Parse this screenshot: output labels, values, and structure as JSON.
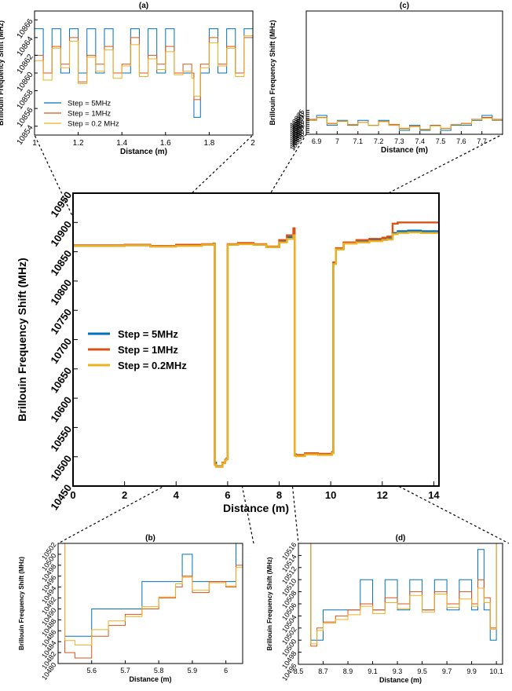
{
  "colors": {
    "s5": "#0072BD",
    "s1": "#D95319",
    "s02": "#EDB120"
  },
  "legend_main": [
    "Step = 5MHz",
    "Step = 1MHz",
    "Step = 0.2MHz"
  ],
  "legend_a": [
    "Step = 5MHz",
    "Step = 1MHz",
    "Step = 0.2 MHz"
  ],
  "chart_data": [
    {
      "id": "main",
      "type": "line",
      "title": "",
      "xlabel": "Distance (m)",
      "ylabel": "Brillouin Frequency Shift (MHz)",
      "xlim": [
        0,
        14.2
      ],
      "ylim": [
        10450,
        10950
      ],
      "xticks": [
        "0",
        "2",
        "4",
        "6",
        "8",
        "10",
        "12",
        "14"
      ],
      "yticks": [
        "10450",
        "10500",
        "10550",
        "10600",
        "10650",
        "10700",
        "10750",
        "10800",
        "10850",
        "10900",
        "10950"
      ],
      "legend_position": "left-middle",
      "series": [
        {
          "name": "Step = 5MHz",
          "x": [
            0,
            1,
            2,
            3,
            4,
            5,
            5.45,
            5.5,
            5.55,
            5.8,
            5.9,
            5.95,
            6.0,
            6.4,
            7.0,
            7.5,
            8.0,
            8.3,
            8.55,
            8.6,
            8.65,
            9.0,
            9.5,
            10.05,
            10.1,
            10.2,
            10.5,
            11.0,
            11.5,
            12.0,
            12.2,
            12.4,
            12.6,
            13.0,
            13.5,
            14.2
          ],
          "y": [
            10860,
            10860,
            10861,
            10859,
            10861,
            10862,
            10863,
            10490,
            10484,
            10490,
            10494,
            10497,
            10862,
            10864,
            10862,
            10858,
            10868,
            10875,
            10880,
            10504,
            10502,
            10505,
            10504,
            10507,
            10830,
            10855,
            10865,
            10868,
            10870,
            10872,
            10873,
            10882,
            10885,
            10886,
            10885,
            10886
          ]
        },
        {
          "name": "Step = 1MHz",
          "x": [
            0,
            1,
            2,
            3,
            4,
            5,
            5.45,
            5.5,
            5.55,
            5.8,
            5.9,
            5.95,
            6.0,
            6.4,
            7.0,
            7.5,
            8.0,
            8.3,
            8.55,
            8.6,
            8.65,
            9.0,
            9.5,
            10.05,
            10.1,
            10.2,
            10.5,
            11.0,
            11.5,
            12.0,
            12.2,
            12.4,
            12.6,
            13.0,
            13.5,
            14.2
          ],
          "y": [
            10861,
            10861,
            10862,
            10860,
            10862,
            10863,
            10864,
            10487,
            10483,
            10490,
            10495,
            10496,
            10863,
            10865,
            10863,
            10859,
            10870,
            10878,
            10890,
            10503,
            10503,
            10506,
            10505,
            10508,
            10832,
            10856,
            10866,
            10870,
            10872,
            10874,
            10876,
            10898,
            10900,
            10900,
            10900,
            10900
          ]
        },
        {
          "name": "Step = 0.2MHz",
          "x": [
            0,
            1,
            2,
            3,
            4,
            5,
            5.45,
            5.5,
            5.55,
            5.8,
            5.9,
            5.95,
            6.0,
            6.4,
            7.0,
            7.5,
            8.0,
            8.3,
            8.55,
            8.6,
            8.65,
            9.0,
            9.5,
            10.05,
            10.1,
            10.2,
            10.5,
            11.0,
            11.5,
            12.0,
            12.2,
            12.4,
            12.6,
            13.0,
            13.5,
            14.2
          ],
          "y": [
            10860,
            10860,
            10861,
            10859,
            10860,
            10862,
            10863,
            10486,
            10483,
            10489,
            10494,
            10496,
            10862,
            10863,
            10862,
            10858,
            10866,
            10872,
            10878,
            10502,
            10501,
            10504,
            10503,
            10506,
            10829,
            10854,
            10864,
            10866,
            10868,
            10870,
            10871,
            10880,
            10882,
            10883,
            10882,
            10883
          ]
        }
      ]
    },
    {
      "id": "a",
      "type": "line",
      "title": "(a)",
      "xlabel": "Distance (m)",
      "ylabel": "Brillouin Frequency Shift (MHz)",
      "xlim": [
        1,
        2
      ],
      "ylim": [
        10853,
        10867
      ],
      "xticks": [
        "1",
        "1.2",
        "1.4",
        "1.6",
        "1.8",
        "2"
      ],
      "yticks": [
        "10854",
        "10856",
        "10858",
        "10860",
        "10862",
        "10864",
        "10866"
      ],
      "legend_position": "bottom-left",
      "series": [
        {
          "name": "Step = 5MHz",
          "x": [
            1.0,
            1.04,
            1.08,
            1.12,
            1.16,
            1.2,
            1.24,
            1.28,
            1.32,
            1.36,
            1.4,
            1.44,
            1.48,
            1.52,
            1.56,
            1.6,
            1.64,
            1.68,
            1.72,
            1.73,
            1.76,
            1.8,
            1.84,
            1.88,
            1.92,
            1.96,
            2.0
          ],
          "y": [
            10865,
            10860,
            10865,
            10860,
            10865,
            10860,
            10865,
            10860,
            10865,
            10860,
            10860,
            10865,
            10860,
            10865,
            10860,
            10865,
            10860,
            10860,
            10860,
            10855,
            10860,
            10865,
            10860,
            10865,
            10860,
            10865,
            10860
          ]
        },
        {
          "name": "Step = 1MHz",
          "x": [
            1.0,
            1.04,
            1.08,
            1.12,
            1.16,
            1.2,
            1.24,
            1.28,
            1.32,
            1.36,
            1.4,
            1.44,
            1.48,
            1.52,
            1.56,
            1.6,
            1.64,
            1.68,
            1.72,
            1.73,
            1.76,
            1.8,
            1.84,
            1.88,
            1.92,
            1.96,
            2.0
          ],
          "y": [
            10862,
            10860,
            10863,
            10861,
            10864,
            10859,
            10862,
            10861,
            10863,
            10860,
            10861,
            10864,
            10860,
            10862,
            10861,
            10863,
            10860,
            10861,
            10860,
            10857,
            10861,
            10864,
            10861,
            10863,
            10860,
            10864,
            10861
          ]
        },
        {
          "name": "Step = 0.2 MHz",
          "x": [
            1.0,
            1.04,
            1.08,
            1.12,
            1.16,
            1.2,
            1.24,
            1.28,
            1.32,
            1.36,
            1.4,
            1.44,
            1.48,
            1.52,
            1.56,
            1.6,
            1.64,
            1.68,
            1.72,
            1.73,
            1.76,
            1.8,
            1.84,
            1.88,
            1.92,
            1.96,
            2.0
          ],
          "y": [
            10861.4,
            10859.2,
            10862.8,
            10860.6,
            10863.6,
            10858.8,
            10861.8,
            10860.2,
            10862.6,
            10859.4,
            10860.8,
            10863.2,
            10859.6,
            10861.6,
            10860.4,
            10862.4,
            10859.8,
            10860.2,
            10859.4,
            10857.4,
            10860.6,
            10863.4,
            10860.8,
            10862.8,
            10859.6,
            10864.2,
            10860.8
          ]
        }
      ]
    },
    {
      "id": "c",
      "type": "line",
      "title": "(c)",
      "xlabel": "Distance (m)",
      "ylabel": "Brillouin Frequency Shift (MHz)",
      "xlim": [
        6.85,
        7.8
      ],
      "ylim": [
        10851,
        10975
      ],
      "xticks": [
        "6.9",
        "7",
        "7.1",
        "7.2",
        "7.3",
        "7.4",
        "7.5",
        "7.6",
        "7.7"
      ],
      "yticks": [
        "10851",
        "10853",
        "10855",
        "10857",
        "10859",
        "10861",
        "10863",
        "10865",
        "10867",
        "10869",
        "10871",
        "10873",
        "10875"
      ],
      "legend_position": "none",
      "series": [
        {
          "name": "Step = 5MHz",
          "x": [
            6.85,
            6.9,
            6.95,
            7.0,
            7.05,
            7.1,
            7.15,
            7.2,
            7.25,
            7.3,
            7.35,
            7.4,
            7.45,
            7.5,
            7.55,
            7.6,
            7.65,
            7.7,
            7.75,
            7.8
          ],
          "y": [
            10865,
            10870,
            10860,
            10865,
            10860,
            10865,
            10860,
            10865,
            10860,
            10855,
            10860,
            10855,
            10860,
            10855,
            10860,
            10860,
            10865,
            10870,
            10865,
            10870
          ]
        },
        {
          "name": "Step = 1MHz",
          "x": [
            6.85,
            6.9,
            6.95,
            7.0,
            7.05,
            7.1,
            7.15,
            7.2,
            7.25,
            7.3,
            7.35,
            7.4,
            7.45,
            7.5,
            7.55,
            7.6,
            7.65,
            7.7,
            7.75,
            7.8
          ],
          "y": [
            10866,
            10868,
            10862,
            10864,
            10861,
            10863,
            10860,
            10864,
            10861,
            10857,
            10859,
            10856,
            10860,
            10857,
            10861,
            10862,
            10866,
            10868,
            10866,
            10869
          ]
        },
        {
          "name": "Step = 0.2 MHz",
          "x": [
            6.85,
            6.9,
            6.95,
            7.0,
            7.05,
            7.1,
            7.15,
            7.2,
            7.25,
            7.3,
            7.35,
            7.4,
            7.45,
            7.5,
            7.55,
            7.6,
            7.65,
            7.7,
            7.75,
            7.8
          ],
          "y": [
            10865.2,
            10867.6,
            10861.4,
            10864.4,
            10860.6,
            10862.8,
            10859.8,
            10863.6,
            10860.2,
            10856.4,
            10858.6,
            10855.8,
            10859.4,
            10856.6,
            10860.8,
            10861.4,
            10865.6,
            10867.2,
            10865.4,
            10868.4
          ]
        }
      ]
    },
    {
      "id": "b",
      "type": "line",
      "title": "(b)",
      "xlabel": "Distance (m)",
      "ylabel": "Brillouin Frequency Shift (MHz)",
      "xlim": [
        5.5,
        6.05
      ],
      "ylim": [
        10480,
        10502
      ],
      "xticks": [
        "5.6",
        "5.7",
        "5.8",
        "5.9",
        "6"
      ],
      "yticks": [
        "10480",
        "10482",
        "10484",
        "10486",
        "10488",
        "10490",
        "10492",
        "10494",
        "10496",
        "10498",
        "10500",
        "10502"
      ],
      "legend_position": "none",
      "series": [
        {
          "name": "Step = 5MHz",
          "x": [
            5.5,
            5.52,
            5.55,
            5.6,
            5.65,
            5.7,
            5.75,
            5.8,
            5.85,
            5.87,
            5.9,
            5.95,
            6.0,
            6.03,
            6.05
          ],
          "y": [
            10502,
            10485,
            10485,
            10490,
            10490,
            10490,
            10495,
            10495,
            10495,
            10500,
            10495,
            10495,
            10495,
            10502,
            10502
          ]
        },
        {
          "name": "Step = 1MHz",
          "x": [
            5.5,
            5.52,
            5.55,
            5.6,
            5.65,
            5.7,
            5.75,
            5.8,
            5.85,
            5.87,
            5.9,
            5.95,
            6.0,
            6.03,
            6.05
          ],
          "y": [
            10502,
            10482,
            10481,
            10485,
            10487,
            10489,
            10490,
            10492,
            10494,
            10496,
            10493,
            10495,
            10494,
            10498,
            10502
          ]
        },
        {
          "name": "Step = 0.2 MHz",
          "x": [
            5.5,
            5.52,
            5.55,
            5.6,
            5.65,
            5.7,
            5.75,
            5.8,
            5.85,
            5.87,
            5.9,
            5.95,
            6.0,
            6.03,
            6.05
          ],
          "y": [
            10502,
            10484.2,
            10483.4,
            10486.2,
            10487.8,
            10488.6,
            10490.4,
            10492.2,
            10494.6,
            10495.8,
            10493.4,
            10494.8,
            10494.2,
            10497.6,
            10502
          ]
        }
      ]
    },
    {
      "id": "d",
      "type": "line",
      "title": "(d)",
      "xlabel": "Distance (m)",
      "ylabel": "Brillouin Frequency Shift (MHz)",
      "xlim": [
        8.5,
        10.15
      ],
      "ylim": [
        10496,
        10516
      ],
      "xticks": [
        "8.5",
        "8.7",
        "8.9",
        "9.1",
        "9.3",
        "9.5",
        "9.7",
        "9.9",
        "10.1"
      ],
      "yticks": [
        "10496",
        "10498",
        "10500",
        "10502",
        "10504",
        "10506",
        "10508",
        "10510",
        "10512",
        "10514",
        "10516"
      ],
      "legend_position": "none",
      "series": [
        {
          "name": "Step = 5MHz",
          "x": [
            8.5,
            8.58,
            8.6,
            8.65,
            8.7,
            8.8,
            8.9,
            9.0,
            9.1,
            9.2,
            9.3,
            9.4,
            9.5,
            9.6,
            9.7,
            9.8,
            9.9,
            9.95,
            10.0,
            10.05,
            10.1,
            10.15
          ],
          "y": [
            10516,
            10516,
            10500,
            10500,
            10505,
            10505,
            10505,
            10510,
            10505,
            10510,
            10505,
            10510,
            10505,
            10510,
            10505,
            10510,
            10505,
            10515,
            10505,
            10500,
            10516,
            10516
          ]
        },
        {
          "name": "Step = 1MHz",
          "x": [
            8.5,
            8.58,
            8.6,
            8.65,
            8.7,
            8.8,
            8.9,
            9.0,
            9.1,
            9.2,
            9.3,
            9.4,
            9.5,
            9.6,
            9.7,
            9.8,
            9.9,
            9.95,
            10.0,
            10.05,
            10.1,
            10.15
          ],
          "y": [
            10516,
            10516,
            10499,
            10502,
            10503,
            10504,
            10505,
            10506,
            10505,
            10507,
            10506,
            10508,
            10505,
            10508,
            10506,
            10508,
            10506,
            10510,
            10507,
            10502,
            10516,
            10516
          ]
        },
        {
          "name": "Step = 0.2 MHz",
          "x": [
            8.5,
            8.58,
            8.6,
            8.65,
            8.7,
            8.8,
            8.9,
            9.0,
            9.1,
            9.2,
            9.3,
            9.4,
            9.5,
            9.6,
            9.7,
            9.8,
            9.9,
            9.95,
            10.0,
            10.05,
            10.1,
            10.15
          ],
          "y": [
            10516,
            10516,
            10499.4,
            10501.6,
            10502.8,
            10503.4,
            10504.2,
            10505.6,
            10504.4,
            10506.2,
            10505.2,
            10507.4,
            10504.6,
            10507.6,
            10505.4,
            10506.8,
            10505.6,
            10508.6,
            10506.2,
            10501.8,
            10516,
            10516
          ]
        }
      ]
    }
  ]
}
